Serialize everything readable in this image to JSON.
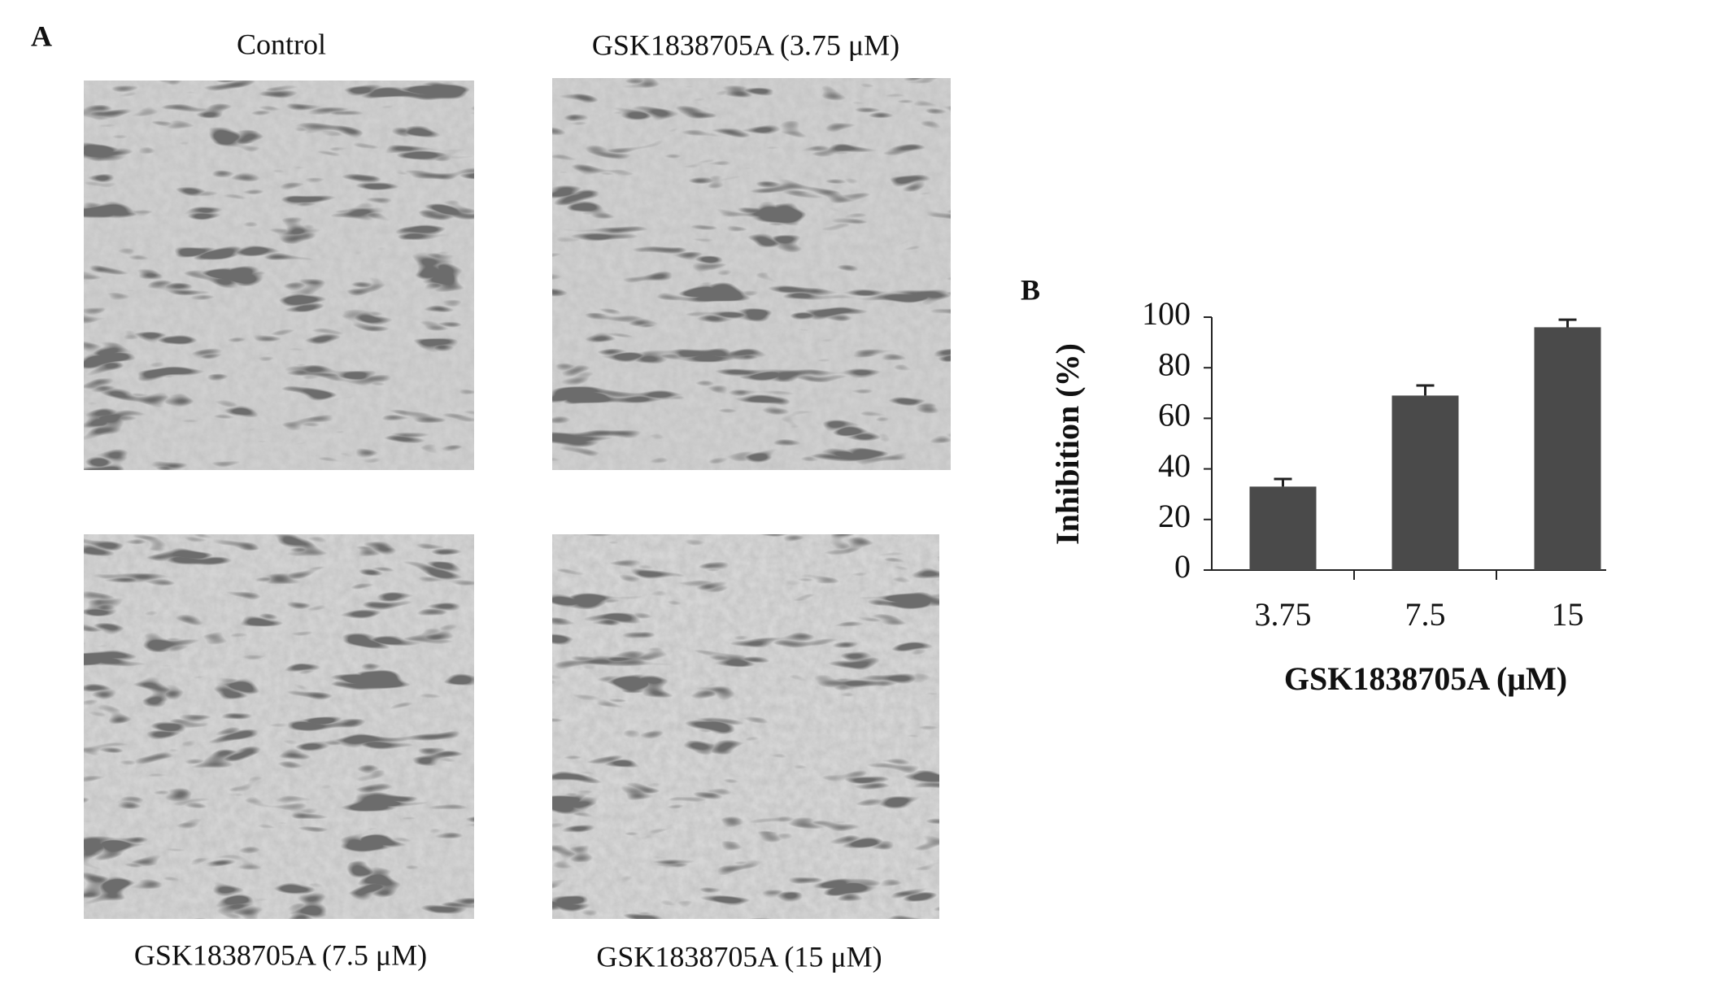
{
  "panel_a": {
    "label": "A",
    "captions": [
      "Control",
      "GSK1838705A (3.75 μM)",
      "GSK1838705A (7.5 μM)",
      "GSK1838705A (15 μM)"
    ]
  },
  "panel_b": {
    "label": "B"
  },
  "chart_data": {
    "type": "bar",
    "categories": [
      "3.75",
      "7.5",
      "15"
    ],
    "values": [
      33,
      69,
      96
    ],
    "errors": [
      3,
      4,
      3
    ],
    "color": "#4a4a4a",
    "ylim": [
      0,
      100
    ],
    "yticks": [
      0,
      20,
      40,
      60,
      80,
      100
    ],
    "x_label": "GSK1838705A (μM)",
    "y_label": "Inhibition (%)",
    "grid": false
  }
}
